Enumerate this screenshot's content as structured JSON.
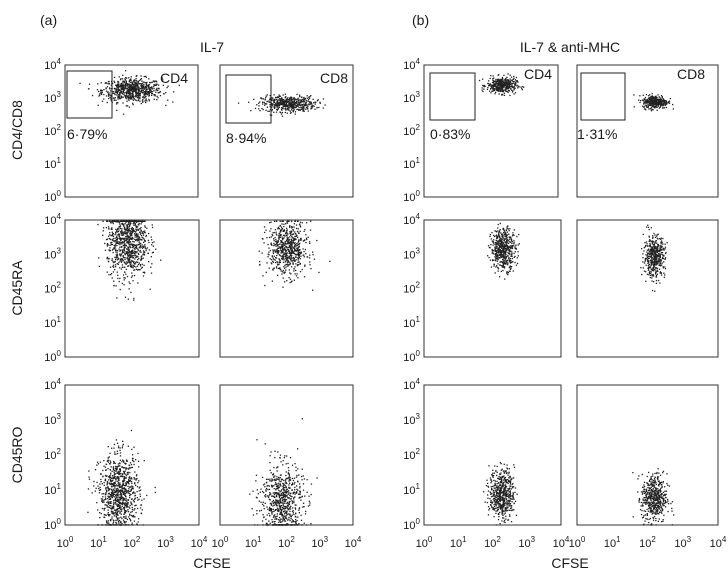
{
  "figure": {
    "panel_a_label": "(a)",
    "panel_b_label": "(b)",
    "condition_a": "IL-7",
    "condition_b": "IL-7 & anti-MHC",
    "row_labels": [
      "CD4/CD8",
      "CD45RA",
      "CD45RO"
    ],
    "x_label": "CFSE",
    "tick_labels": [
      "10",
      "10",
      "10",
      "10",
      "10"
    ],
    "tick_exponents": [
      "0",
      "1",
      "2",
      "3",
      "4"
    ]
  },
  "colors": {
    "dots": "#222222",
    "frame": "#333333",
    "background": "#ffffff"
  },
  "chart_data": {
    "type": "scatter",
    "x_scale": "log",
    "y_scale": "log",
    "xlim": [
      1,
      10000
    ],
    "ylim": [
      1,
      10000
    ],
    "xlabel": "CFSE",
    "panels": [
      {
        "group": "IL-7",
        "row": "CD4/CD8",
        "subset_label": "CD4",
        "gate_label": "6·79%",
        "gate_percent": 6.79,
        "gate_x": [
          1.5,
          40
        ],
        "gate_y": [
          300,
          6000
        ],
        "cluster": {
          "x_median": 100,
          "y_median": 1800
        }
      },
      {
        "group": "IL-7",
        "row": "CD4/CD8",
        "subset_label": "CD8",
        "gate_label": "8·94%",
        "gate_percent": 8.94,
        "gate_x": [
          1.5,
          30
        ],
        "gate_y": [
          200,
          4500
        ],
        "cluster": {
          "x_median": 110,
          "y_median": 700
        }
      },
      {
        "group": "IL-7 & anti-MHC",
        "row": "CD4/CD8",
        "subset_label": "CD4",
        "gate_label": "0·83%",
        "gate_percent": 0.83,
        "gate_x": [
          1.5,
          30
        ],
        "gate_y": [
          300,
          4500
        ],
        "cluster": {
          "x_median": 200,
          "y_median": 2500
        }
      },
      {
        "group": "IL-7 & anti-MHC",
        "row": "CD4/CD8",
        "subset_label": "CD8",
        "gate_label": "1·31%",
        "gate_percent": 1.31,
        "gate_x": [
          1.5,
          30
        ],
        "gate_y": [
          150,
          3500
        ],
        "cluster": {
          "x_median": 160,
          "y_median": 800
        }
      },
      {
        "group": "IL-7",
        "row": "CD45RA",
        "subset_label": "",
        "gate_label": "",
        "cluster": {
          "x_median": 70,
          "y_median": 2500
        }
      },
      {
        "group": "IL-7",
        "row": "CD45RA",
        "subset_label": "",
        "gate_label": "",
        "cluster": {
          "x_median": 100,
          "y_median": 1500
        }
      },
      {
        "group": "IL-7 & anti-MHC",
        "row": "CD45RA",
        "subset_label": "",
        "gate_label": "",
        "cluster": {
          "x_median": 200,
          "y_median": 1500
        }
      },
      {
        "group": "IL-7 & anti-MHC",
        "row": "CD45RA",
        "subset_label": "",
        "gate_label": "",
        "cluster": {
          "x_median": 150,
          "y_median": 900
        }
      },
      {
        "group": "IL-7",
        "row": "CD45RO",
        "subset_label": "",
        "gate_label": "",
        "cluster": {
          "x_median": 40,
          "y_median": 8
        }
      },
      {
        "group": "IL-7",
        "row": "CD45RO",
        "subset_label": "",
        "gate_label": "",
        "cluster": {
          "x_median": 70,
          "y_median": 5
        }
      },
      {
        "group": "IL-7 & anti-MHC",
        "row": "CD45RO",
        "subset_label": "",
        "gate_label": "",
        "cluster": {
          "x_median": 180,
          "y_median": 8
        }
      },
      {
        "group": "IL-7 & anti-MHC",
        "row": "CD45RO",
        "subset_label": "",
        "gate_label": "",
        "cluster": {
          "x_median": 150,
          "y_median": 6
        }
      }
    ]
  }
}
